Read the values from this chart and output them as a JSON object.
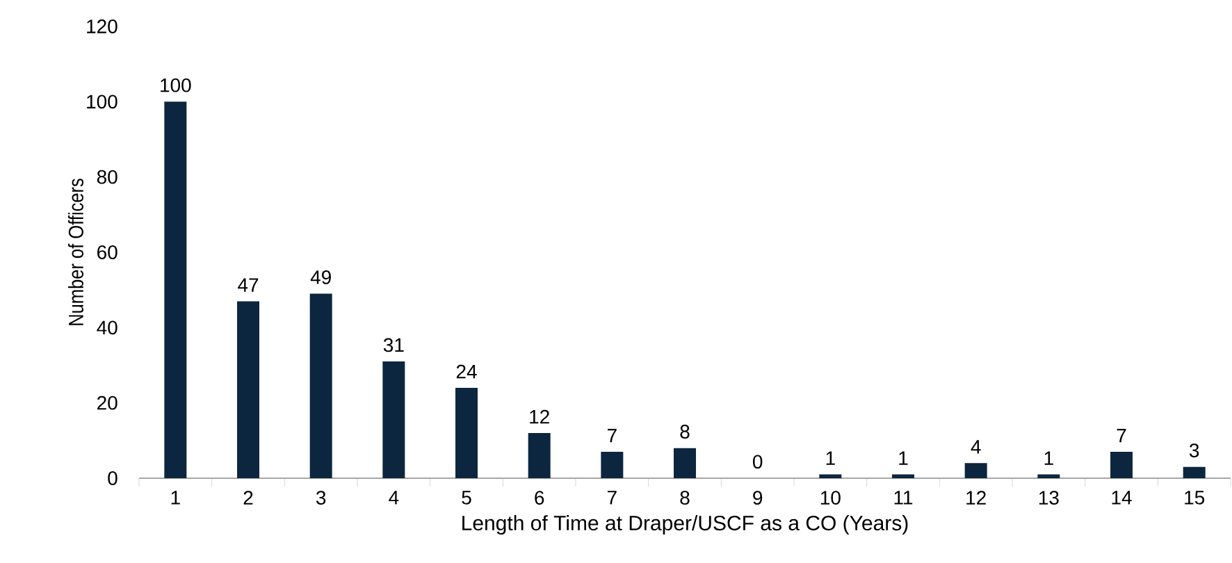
{
  "chart_data": {
    "type": "bar",
    "xlabel": "Length of Time at Draper/USCF as a CO (Years)",
    "ylabel": "Number of Officers",
    "categories": [
      "1",
      "2",
      "3",
      "4",
      "5",
      "6",
      "7",
      "8",
      "9",
      "10",
      "11",
      "12",
      "13",
      "14",
      "15"
    ],
    "values": [
      100,
      47,
      49,
      31,
      24,
      12,
      7,
      8,
      0,
      1,
      1,
      4,
      1,
      7,
      3
    ],
    "color": "#0d2640",
    "ylim": [
      0,
      120
    ],
    "yticks": [
      0,
      20,
      40,
      60,
      80,
      100,
      120
    ],
    "data_labels": true
  }
}
